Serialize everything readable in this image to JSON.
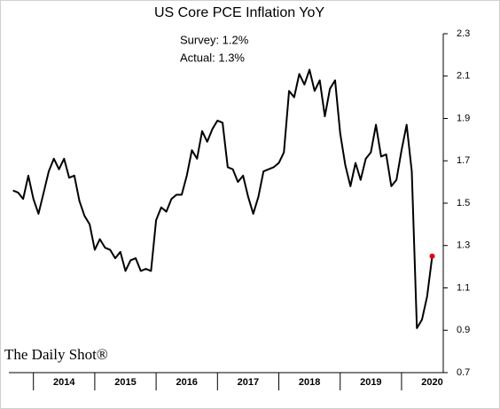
{
  "chart_data": {
    "type": "line",
    "title": "US Core PCE Inflation YoY",
    "annotations": [
      "Survey: 1.2%",
      "Actual:  1.3%"
    ],
    "source": "The Daily Shot®",
    "x": [
      2013.667,
      2013.75,
      2013.833,
      2013.917,
      2014,
      2014.083,
      2014.167,
      2014.25,
      2014.333,
      2014.417,
      2014.5,
      2014.583,
      2014.667,
      2014.75,
      2014.833,
      2014.917,
      2015,
      2015.083,
      2015.167,
      2015.25,
      2015.333,
      2015.417,
      2015.5,
      2015.583,
      2015.667,
      2015.75,
      2015.833,
      2015.917,
      2016,
      2016.083,
      2016.167,
      2016.25,
      2016.333,
      2016.417,
      2016.5,
      2016.583,
      2016.667,
      2016.75,
      2016.833,
      2016.917,
      2017,
      2017.083,
      2017.167,
      2017.25,
      2017.333,
      2017.417,
      2017.5,
      2017.583,
      2017.667,
      2017.75,
      2017.833,
      2017.917,
      2018,
      2018.083,
      2018.167,
      2018.25,
      2018.333,
      2018.417,
      2018.5,
      2018.583,
      2018.667,
      2018.75,
      2018.833,
      2018.917,
      2019,
      2019.083,
      2019.167,
      2019.25,
      2019.333,
      2019.417,
      2019.5,
      2019.583,
      2019.667,
      2019.75,
      2019.833,
      2019.917,
      2020,
      2020.083,
      2020.167,
      2020.25,
      2020.333,
      2020.417,
      2020.5
    ],
    "series": [
      {
        "color": "#000000",
        "values": [
          1.56,
          1.55,
          1.52,
          1.63,
          1.52,
          1.45,
          1.55,
          1.65,
          1.71,
          1.66,
          1.71,
          1.62,
          1.63,
          1.51,
          1.44,
          1.4,
          1.28,
          1.33,
          1.29,
          1.28,
          1.24,
          1.27,
          1.18,
          1.23,
          1.24,
          1.18,
          1.19,
          1.18,
          1.42,
          1.48,
          1.46,
          1.52,
          1.54,
          1.54,
          1.63,
          1.75,
          1.71,
          1.84,
          1.79,
          1.85,
          1.89,
          1.88,
          1.67,
          1.66,
          1.6,
          1.63,
          1.53,
          1.45,
          1.53,
          1.65,
          1.66,
          1.67,
          1.69,
          1.74,
          2.03,
          2.0,
          2.11,
          2.06,
          2.13,
          2.03,
          2.08,
          1.91,
          2.04,
          2.08,
          1.83,
          1.68,
          1.58,
          1.69,
          1.61,
          1.71,
          1.74,
          1.87,
          1.72,
          1.73,
          1.58,
          1.61,
          1.75,
          1.87,
          1.65,
          0.91,
          0.95,
          1.06,
          1.25
        ]
      }
    ],
    "last_point_color": "#e8000b",
    "xlim": [
      2013.6,
      2020.68
    ],
    "xticks": [
      {
        "value": 2014.5,
        "label": "2014"
      },
      {
        "value": 2015.5,
        "label": "2015"
      },
      {
        "value": 2016.5,
        "label": "2016"
      },
      {
        "value": 2017.5,
        "label": "2017"
      },
      {
        "value": 2018.5,
        "label": "2018"
      },
      {
        "value": 2019.5,
        "label": "2019"
      },
      {
        "value": 2020.5,
        "label": "2020"
      }
    ],
    "ylim": [
      0.7,
      2.3
    ],
    "yticks": [
      0.7,
      0.9,
      1.1,
      1.3,
      1.5,
      1.7,
      1.9,
      2.1,
      2.3
    ],
    "grid": false
  }
}
